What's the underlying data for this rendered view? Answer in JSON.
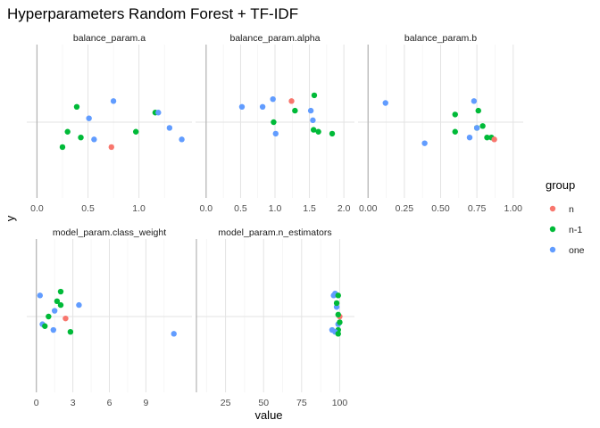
{
  "chart_data": {
    "type": "scatter",
    "title": "Hyperparameters Random Forest + TF-IDF",
    "xlabel": "value",
    "ylabel": "y",
    "legend": {
      "title": "group",
      "placement": "right",
      "entries": [
        {
          "name": "n",
          "color": "#F8766D"
        },
        {
          "name": "n-1",
          "color": "#00BA38"
        },
        {
          "name": "one",
          "color": "#619CFF"
        }
      ]
    },
    "y_note": "jittered around 0",
    "ylim": [
      -0.4,
      0.4
    ],
    "grid": true,
    "panels": [
      {
        "name": "balance_param.a",
        "xlim": [
          -0.03,
          1.45
        ],
        "xticks": [
          {
            "v": 0,
            "label": "0.0"
          },
          {
            "v": 0.5,
            "label": "0.5"
          },
          {
            "v": 1.0,
            "label": "1.0"
          }
        ],
        "xminor": [
          0.25,
          0.75,
          1.25
        ],
        "points": [
          {
            "x": 0.25,
            "y": -0.13,
            "g": "n-1"
          },
          {
            "x": 0.3,
            "y": -0.05,
            "g": "n-1"
          },
          {
            "x": 0.39,
            "y": 0.08,
            "g": "n-1"
          },
          {
            "x": 0.43,
            "y": -0.08,
            "g": "n-1"
          },
          {
            "x": 0.51,
            "y": 0.02,
            "g": "one"
          },
          {
            "x": 0.56,
            "y": -0.09,
            "g": "one"
          },
          {
            "x": 0.73,
            "y": -0.13,
            "g": "n"
          },
          {
            "x": 0.75,
            "y": 0.11,
            "g": "one"
          },
          {
            "x": 0.97,
            "y": -0.05,
            "g": "n-1"
          },
          {
            "x": 1.16,
            "y": 0.05,
            "g": "n-1"
          },
          {
            "x": 1.19,
            "y": 0.05,
            "g": "one"
          },
          {
            "x": 1.3,
            "y": -0.03,
            "g": "one"
          },
          {
            "x": 1.42,
            "y": -0.09,
            "g": "one"
          }
        ]
      },
      {
        "name": "balance_param.alpha",
        "xlim": [
          -0.05,
          2.05
        ],
        "xticks": [
          {
            "v": 0,
            "label": "0.0"
          },
          {
            "v": 0.5,
            "label": "0.5"
          },
          {
            "v": 1.0,
            "label": "1.0"
          },
          {
            "v": 1.5,
            "label": "1.5"
          },
          {
            "v": 2.0,
            "label": "2.0"
          }
        ],
        "xminor": [
          0.25,
          0.75,
          1.25,
          1.75
        ],
        "points": [
          {
            "x": 0.52,
            "y": 0.08,
            "g": "one"
          },
          {
            "x": 0.82,
            "y": 0.08,
            "g": "one"
          },
          {
            "x": 0.97,
            "y": 0.12,
            "g": "one"
          },
          {
            "x": 0.98,
            "y": 0.0,
            "g": "n-1"
          },
          {
            "x": 1.01,
            "y": -0.06,
            "g": "one"
          },
          {
            "x": 1.24,
            "y": 0.11,
            "g": "n"
          },
          {
            "x": 1.29,
            "y": 0.06,
            "g": "n-1"
          },
          {
            "x": 1.52,
            "y": 0.06,
            "g": "one"
          },
          {
            "x": 1.55,
            "y": 0.01,
            "g": "one"
          },
          {
            "x": 1.57,
            "y": 0.14,
            "g": "n-1"
          },
          {
            "x": 1.56,
            "y": -0.04,
            "g": "n-1"
          },
          {
            "x": 1.63,
            "y": -0.05,
            "g": "n-1"
          },
          {
            "x": 1.83,
            "y": -0.06,
            "g": "n-1"
          }
        ]
      },
      {
        "name": "balance_param.b",
        "xlim": [
          -0.02,
          1.02
        ],
        "xticks": [
          {
            "v": 0,
            "label": "0.00"
          },
          {
            "v": 0.25,
            "label": "0.25"
          },
          {
            "v": 0.5,
            "label": "0.50"
          },
          {
            "v": 0.75,
            "label": "0.75"
          },
          {
            "v": 1.0,
            "label": "1.00"
          }
        ],
        "xminor": [
          0.125,
          0.375,
          0.625,
          0.875
        ],
        "points": [
          {
            "x": 0.12,
            "y": 0.1,
            "g": "one"
          },
          {
            "x": 0.39,
            "y": -0.11,
            "g": "one"
          },
          {
            "x": 0.6,
            "y": 0.04,
            "g": "n-1"
          },
          {
            "x": 0.6,
            "y": -0.05,
            "g": "n-1"
          },
          {
            "x": 0.7,
            "y": -0.08,
            "g": "one"
          },
          {
            "x": 0.73,
            "y": 0.11,
            "g": "one"
          },
          {
            "x": 0.75,
            "y": -0.03,
            "g": "n-1"
          },
          {
            "x": 0.76,
            "y": 0.06,
            "g": "n-1"
          },
          {
            "x": 0.75,
            "y": -0.03,
            "g": "one"
          },
          {
            "x": 0.79,
            "y": -0.02,
            "g": "n-1"
          },
          {
            "x": 0.82,
            "y": -0.08,
            "g": "n-1"
          },
          {
            "x": 0.85,
            "y": -0.08,
            "g": "n-1"
          },
          {
            "x": 0.87,
            "y": -0.09,
            "g": "n"
          }
        ]
      },
      {
        "name": "model_param.class_weight",
        "xlim": [
          -0.2,
          12.2
        ],
        "xticks": [
          {
            "v": 0,
            "label": "0"
          },
          {
            "v": 3,
            "label": "3"
          },
          {
            "v": 6,
            "label": "6"
          },
          {
            "v": 9,
            "label": "9"
          }
        ],
        "xminor": [
          1.5,
          4.5,
          7.5,
          10.5
        ],
        "points": [
          {
            "x": 0.3,
            "y": 0.11,
            "g": "one"
          },
          {
            "x": 0.5,
            "y": -0.04,
            "g": "one"
          },
          {
            "x": 0.7,
            "y": -0.05,
            "g": "n-1"
          },
          {
            "x": 1.0,
            "y": 0.0,
            "g": "n-1"
          },
          {
            "x": 1.4,
            "y": -0.07,
            "g": "one"
          },
          {
            "x": 1.5,
            "y": 0.03,
            "g": "one"
          },
          {
            "x": 1.7,
            "y": 0.08,
            "g": "n-1"
          },
          {
            "x": 2.0,
            "y": 0.13,
            "g": "n-1"
          },
          {
            "x": 2.0,
            "y": 0.06,
            "g": "n-1"
          },
          {
            "x": 2.4,
            "y": -0.01,
            "g": "n"
          },
          {
            "x": 2.8,
            "y": -0.08,
            "g": "n-1"
          },
          {
            "x": 3.5,
            "y": 0.06,
            "g": "one"
          },
          {
            "x": 11.3,
            "y": -0.09,
            "g": "one"
          }
        ]
      },
      {
        "name": "model_param.n_estimators",
        "xlim": [
          10,
          105
        ],
        "xticks": [
          {
            "v": 25,
            "label": "25"
          },
          {
            "v": 50,
            "label": "50"
          },
          {
            "v": 75,
            "label": "75"
          },
          {
            "v": 100,
            "label": "100"
          }
        ],
        "xminor": [
          12.5,
          37.5,
          62.5,
          87.5
        ],
        "points": [
          {
            "x": 96,
            "y": 0.11,
            "g": "one"
          },
          {
            "x": 97,
            "y": 0.12,
            "g": "one"
          },
          {
            "x": 98,
            "y": 0.05,
            "g": "one"
          },
          {
            "x": 98,
            "y": 0.07,
            "g": "n-1"
          },
          {
            "x": 99,
            "y": 0.11,
            "g": "n-1"
          },
          {
            "x": 99,
            "y": -0.04,
            "g": "one"
          },
          {
            "x": 99,
            "y": -0.07,
            "g": "n-1"
          },
          {
            "x": 100,
            "y": 0.0,
            "g": "n"
          },
          {
            "x": 100,
            "y": -0.03,
            "g": "n-1"
          },
          {
            "x": 95,
            "y": -0.07,
            "g": "one"
          },
          {
            "x": 97,
            "y": -0.08,
            "g": "one"
          },
          {
            "x": 99,
            "y": -0.09,
            "g": "n-1"
          },
          {
            "x": 99,
            "y": 0.01,
            "g": "n-1"
          }
        ]
      }
    ]
  }
}
